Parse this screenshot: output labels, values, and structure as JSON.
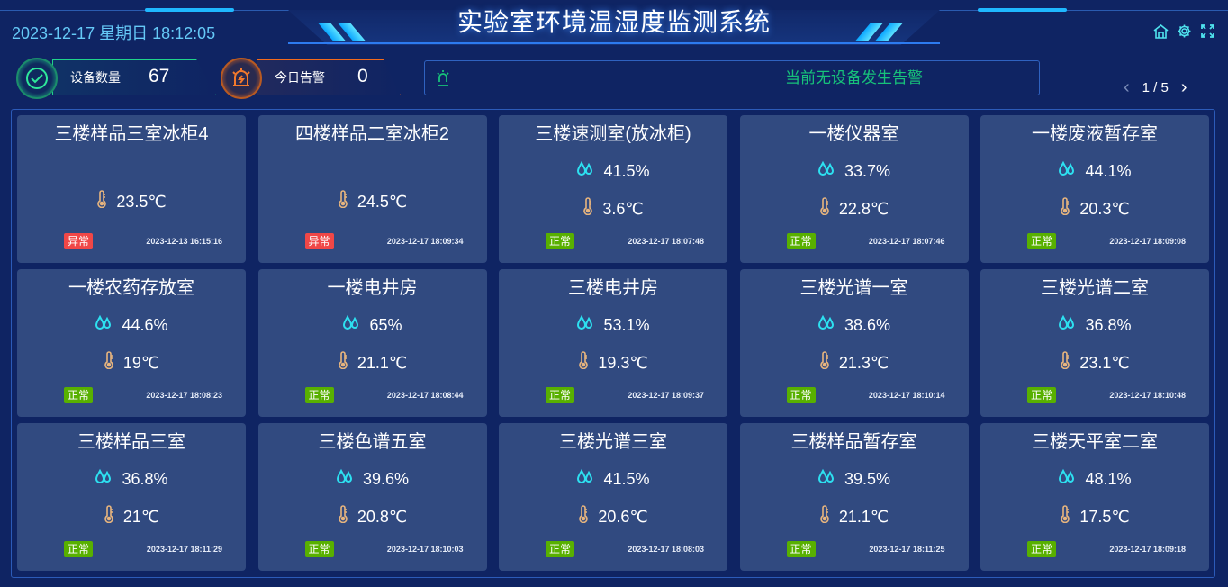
{
  "header": {
    "title": "实验室环境温湿度监测系统",
    "datetime": "2023-12-17 星期日 18:12:05",
    "icons": [
      "home-icon",
      "gear-icon",
      "fullscreen-icon"
    ]
  },
  "stats": {
    "devices": {
      "label": "设备数量",
      "value": "67",
      "color": "#1fd38a"
    },
    "alarms": {
      "label": "今日告警",
      "value": "0",
      "color": "#f26b1d"
    }
  },
  "alarm_bar": {
    "message": "当前无设备发生告警",
    "color": "#17c27a"
  },
  "pager": {
    "text": "1 / 5"
  },
  "colors": {
    "normal": "#58b000",
    "abnormal": "#f04747",
    "humidity_icon": "#2de0f0",
    "temp_icon": "#e8b57e"
  },
  "cards": [
    {
      "name": "三楼样品三室冰柜4",
      "humidity": null,
      "temp": "23.5℃",
      "status": "异常",
      "abnormal": true,
      "time": "2023-12-13 16:15:16"
    },
    {
      "name": "四楼样品二室冰柜2",
      "humidity": null,
      "temp": "24.5℃",
      "status": "异常",
      "abnormal": true,
      "time": "2023-12-17 18:09:34"
    },
    {
      "name": "三楼速测室(放冰柜)",
      "humidity": "41.5%",
      "temp": "3.6℃",
      "status": "正常",
      "abnormal": false,
      "time": "2023-12-17 18:07:48"
    },
    {
      "name": "一楼仪器室",
      "humidity": "33.7%",
      "temp": "22.8℃",
      "status": "正常",
      "abnormal": false,
      "time": "2023-12-17 18:07:46"
    },
    {
      "name": "一楼废液暂存室",
      "humidity": "44.1%",
      "temp": "20.3℃",
      "status": "正常",
      "abnormal": false,
      "time": "2023-12-17 18:09:08"
    },
    {
      "name": "一楼农药存放室",
      "humidity": "44.6%",
      "temp": "19℃",
      "status": "正常",
      "abnormal": false,
      "time": "2023-12-17 18:08:23"
    },
    {
      "name": "一楼电井房",
      "humidity": "65%",
      "temp": "21.1℃",
      "status": "正常",
      "abnormal": false,
      "time": "2023-12-17 18:08:44"
    },
    {
      "name": "三楼电井房",
      "humidity": "53.1%",
      "temp": "19.3℃",
      "status": "正常",
      "abnormal": false,
      "time": "2023-12-17 18:09:37"
    },
    {
      "name": "三楼光谱一室",
      "humidity": "38.6%",
      "temp": "21.3℃",
      "status": "正常",
      "abnormal": false,
      "time": "2023-12-17 18:10:14"
    },
    {
      "name": "三楼光谱二室",
      "humidity": "36.8%",
      "temp": "23.1℃",
      "status": "正常",
      "abnormal": false,
      "time": "2023-12-17 18:10:48"
    },
    {
      "name": "三楼样品三室",
      "humidity": "36.8%",
      "temp": "21℃",
      "status": "正常",
      "abnormal": false,
      "time": "2023-12-17 18:11:29"
    },
    {
      "name": "三楼色谱五室",
      "humidity": "39.6%",
      "temp": "20.8℃",
      "status": "正常",
      "abnormal": false,
      "time": "2023-12-17 18:10:03"
    },
    {
      "name": "三楼光谱三室",
      "humidity": "41.5%",
      "temp": "20.6℃",
      "status": "正常",
      "abnormal": false,
      "time": "2023-12-17 18:08:03"
    },
    {
      "name": "三楼样品暂存室",
      "humidity": "39.5%",
      "temp": "21.1℃",
      "status": "正常",
      "abnormal": false,
      "time": "2023-12-17 18:11:25"
    },
    {
      "name": "三楼天平室二室",
      "humidity": "48.1%",
      "temp": "17.5℃",
      "status": "正常",
      "abnormal": false,
      "time": "2023-12-17 18:09:18"
    }
  ]
}
